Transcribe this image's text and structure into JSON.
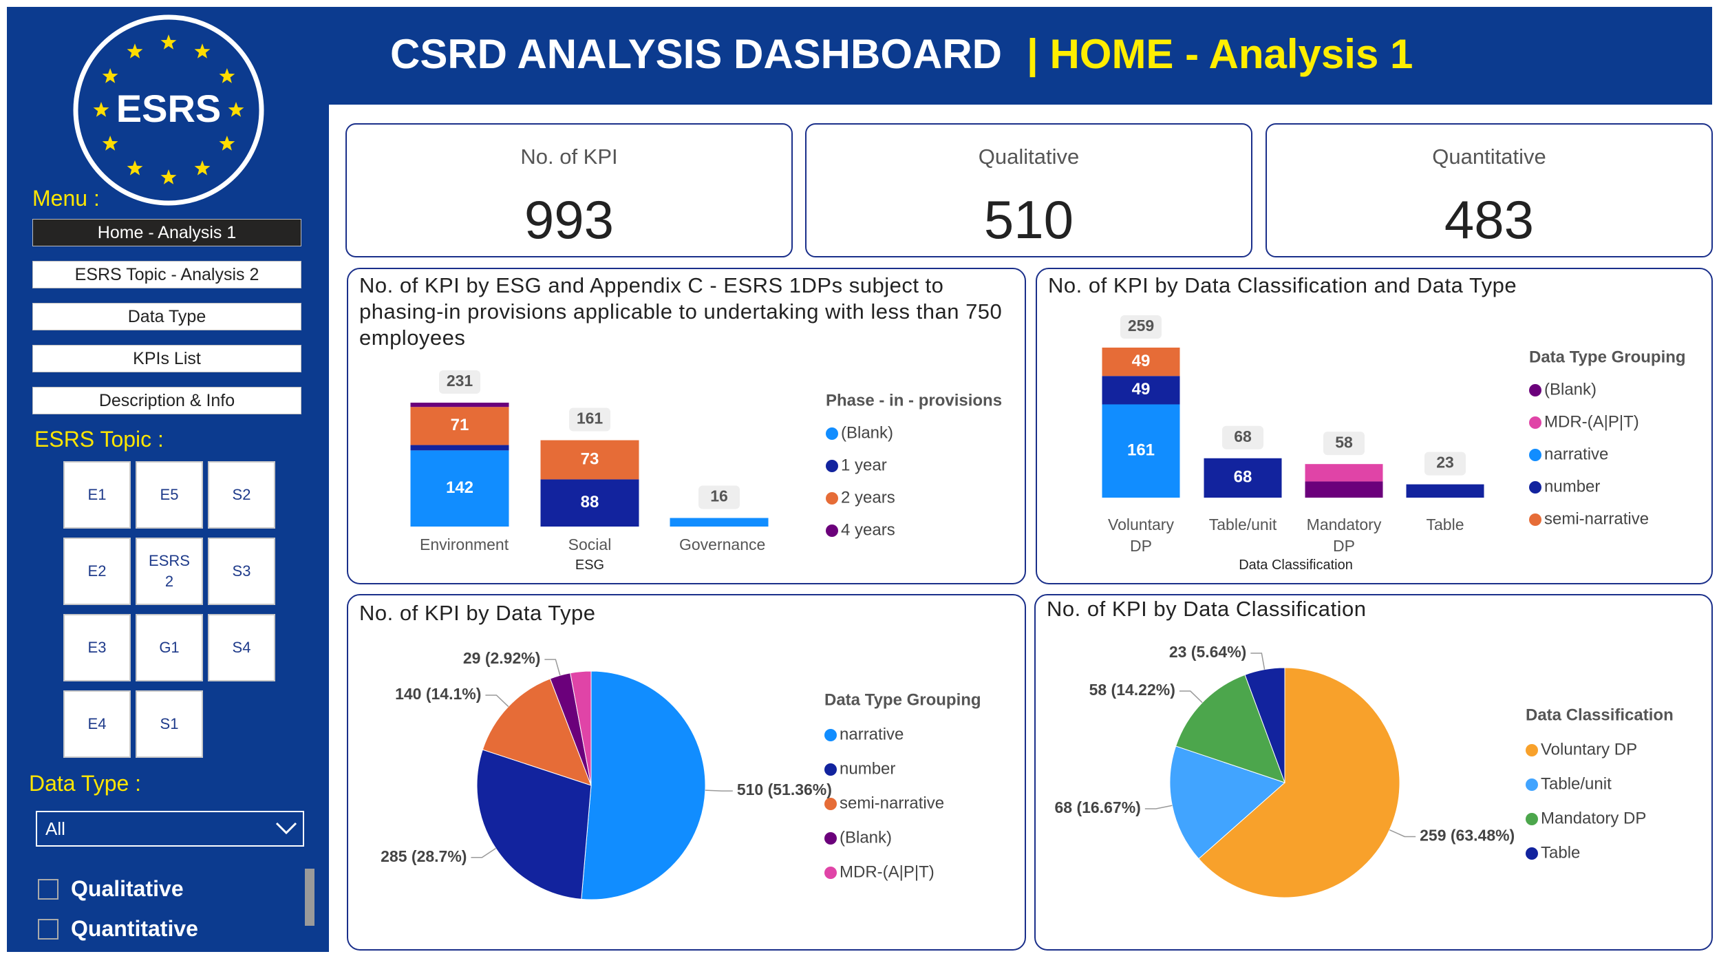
{
  "header": {
    "title": "CSRD ANALYSIS DASHBOARD",
    "subtitle": "| HOME - Analysis 1"
  },
  "sidebar": {
    "logo_text": "ESRS",
    "menu_label": "Menu :",
    "menu_items": [
      "Home - Analysis 1",
      "ESRS Topic - Analysis 2",
      "Data Type",
      "KPIs List",
      "Description & Info"
    ],
    "topic_label": "ESRS Topic :",
    "topics": [
      "E1",
      "E5",
      "S2",
      "E2",
      "ESRS 2",
      "S3",
      "E3",
      "G1",
      "S4",
      "E4",
      "S1"
    ],
    "data_type_label": "Data Type :",
    "dropdown_value": "All",
    "checkboxes": [
      "Qualitative",
      "Quantitative"
    ]
  },
  "cards": [
    {
      "label": "No. of KPI",
      "value": 993
    },
    {
      "label": "Qualitative",
      "value": 510
    },
    {
      "label": "Quantitative",
      "value": 483
    }
  ],
  "charts": [
    {
      "type": "stacked_bar",
      "title": "No. of KPI by ESG and Appendix C - ESRS 1DPs subject to phasing-in provisions applicable to undertaking with less than 750 employees",
      "x_label": "ESG",
      "categories": [
        "Environment",
        "Social",
        "Governance"
      ],
      "totals": [
        231,
        161,
        16
      ],
      "legend_title": "Phase - in - provisions",
      "series": [
        {
          "name": "(Blank)",
          "color": "#118dff",
          "values": [
            142,
            null,
            16
          ]
        },
        {
          "name": "1 year",
          "color": "#12239e",
          "values": [
            10,
            88,
            null
          ]
        },
        {
          "name": "2 years",
          "color": "#e66c37",
          "values": [
            71,
            73,
            null
          ]
        },
        {
          "name": "4 years",
          "color": "#6b007b",
          "values": [
            8,
            null,
            null
          ]
        }
      ]
    },
    {
      "type": "stacked_bar",
      "title": "No. of KPI by Data Classification and Data Type",
      "x_label": "Data Classification",
      "categories": [
        "Voluntary DP",
        "Table/unit",
        "Mandatory DP",
        "Table"
      ],
      "totals": [
        259,
        68,
        58,
        23
      ],
      "legend_title": "Data Type Grouping",
      "series": [
        {
          "name": "(Blank)",
          "color": "#6b007b",
          "values": [
            null,
            null,
            28,
            null
          ]
        },
        {
          "name": "MDR-(A|P|T)",
          "color": "#e044a7",
          "values": [
            null,
            null,
            30,
            null
          ]
        },
        {
          "name": "narrative",
          "color": "#118dff",
          "values": [
            161,
            null,
            null,
            null
          ]
        },
        {
          "name": "number",
          "color": "#12239e",
          "values": [
            49,
            68,
            null,
            23
          ]
        },
        {
          "name": "semi-narrative",
          "color": "#e66c37",
          "values": [
            49,
            null,
            null,
            null
          ]
        }
      ]
    },
    {
      "type": "pie",
      "title": "No. of KPI by Data Type",
      "legend_title": "Data Type Grouping",
      "categories": [
        "narrative",
        "number",
        "semi-narrative",
        "(Blank)",
        "MDR-(A|P|T)"
      ],
      "values": [
        510,
        285,
        140,
        29,
        29
      ],
      "value_labels": [
        "510 (51.36%)",
        "285 (28.7%)",
        "140 (14.1%)",
        "29 (2.92%)",
        null
      ],
      "colors": [
        "#118dff",
        "#12239e",
        "#e66c37",
        "#6b007b",
        "#e044a7"
      ]
    },
    {
      "type": "pie",
      "title": "No. of KPI by Data Classification",
      "legend_title": "Data Classification",
      "categories": [
        "Voluntary DP",
        "Table/unit",
        "Mandatory DP",
        "Table"
      ],
      "values": [
        259,
        68,
        58,
        23
      ],
      "value_labels": [
        "259 (63.48%)",
        "68 (16.67%)",
        "58 (14.22%)",
        "23 (5.64%)"
      ],
      "colors": [
        "#f8a12b",
        "#41a4ff",
        "#4ca64c",
        "#12239e"
      ]
    }
  ]
}
